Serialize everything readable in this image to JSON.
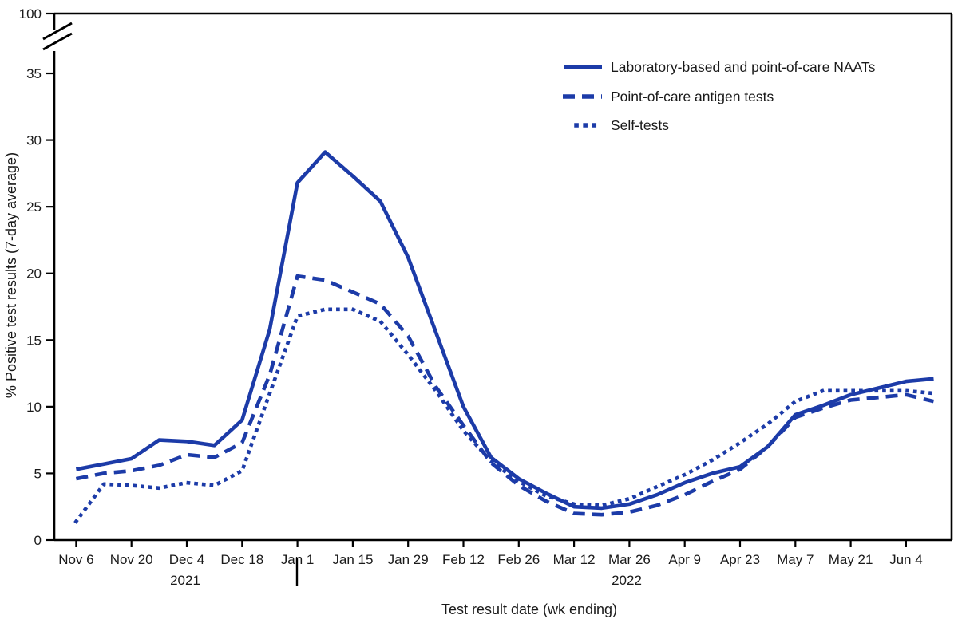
{
  "figure": {
    "y_axis": {
      "label": "% Positive test results (7-day average)",
      "ticks": [
        "0",
        "5",
        "10",
        "15",
        "20",
        "25",
        "30",
        "35"
      ],
      "break_top_tick": "100"
    },
    "x_axis": {
      "label": "Test result date (wk ending)",
      "tick_labels": [
        "Nov 6",
        "Nov 20",
        "Dec 4",
        "Dec 18",
        "Jan 1",
        "Jan 15",
        "Jan 29",
        "Feb 12",
        "Feb 26",
        "Mar 12",
        "Mar 26",
        "Apr 9",
        "Apr 23",
        "May 7",
        "May 21",
        "Jun 4"
      ],
      "year_left": "2021",
      "year_right": "2022"
    },
    "colors": {
      "line_blue": "#1c3ba8",
      "axis_black": "#000000"
    }
  },
  "chart_data": {
    "type": "line",
    "title": "",
    "xlabel": "Test result date (wk ending)",
    "ylabel": "% Positive test results (7-day average)",
    "ylim": [
      0,
      100
    ],
    "y_axis_break_between": [
      37,
      100
    ],
    "grid": "off",
    "legend_position": "top-center-inside",
    "x": [
      "Nov 6",
      "Nov 13",
      "Nov 20",
      "Nov 27",
      "Dec 4",
      "Dec 11",
      "Dec 18",
      "Dec 25",
      "Jan 1",
      "Jan 8",
      "Jan 15",
      "Jan 22",
      "Jan 29",
      "Feb 5",
      "Feb 12",
      "Feb 19",
      "Feb 26",
      "Mar 5",
      "Mar 12",
      "Mar 19",
      "Mar 26",
      "Apr 2",
      "Apr 9",
      "Apr 16",
      "Apr 23",
      "Apr 30",
      "May 7",
      "May 14",
      "May 21",
      "May 28",
      "Jun 4",
      "Jun 11"
    ],
    "series": [
      {
        "name": "Laboratory-based and point-of-care NAATs",
        "style": "solid",
        "values": [
          5.3,
          5.7,
          6.1,
          7.5,
          7.4,
          7.1,
          9.0,
          15.8,
          26.8,
          29.1,
          27.3,
          25.4,
          21.2,
          15.6,
          10.0,
          6.2,
          4.6,
          3.5,
          2.5,
          2.4,
          2.7,
          3.4,
          4.3,
          5.0,
          5.5,
          7.0,
          9.4,
          10.1,
          10.9,
          11.4,
          11.9,
          12.1
        ]
      },
      {
        "name": "Point-of-care antigen tests",
        "style": "dashed",
        "values": [
          4.6,
          5.0,
          5.2,
          5.6,
          6.4,
          6.2,
          7.3,
          12.4,
          19.8,
          19.5,
          18.6,
          17.7,
          15.3,
          11.5,
          8.6,
          5.8,
          4.1,
          2.9,
          2.0,
          1.9,
          2.1,
          2.6,
          3.4,
          4.4,
          5.3,
          7.0,
          9.2,
          9.9,
          10.5,
          10.7,
          10.9,
          10.4
        ]
      },
      {
        "name": "Self-tests",
        "style": "dotted",
        "values": [
          1.4,
          4.2,
          4.1,
          3.9,
          4.3,
          4.1,
          5.2,
          11.0,
          16.8,
          17.3,
          17.3,
          16.4,
          13.9,
          11.2,
          8.2,
          5.9,
          4.4,
          3.3,
          2.7,
          2.6,
          3.1,
          4.0,
          4.9,
          6.0,
          7.3,
          8.7,
          10.4,
          11.2,
          11.2,
          11.2,
          11.2,
          11.0
        ]
      }
    ]
  }
}
